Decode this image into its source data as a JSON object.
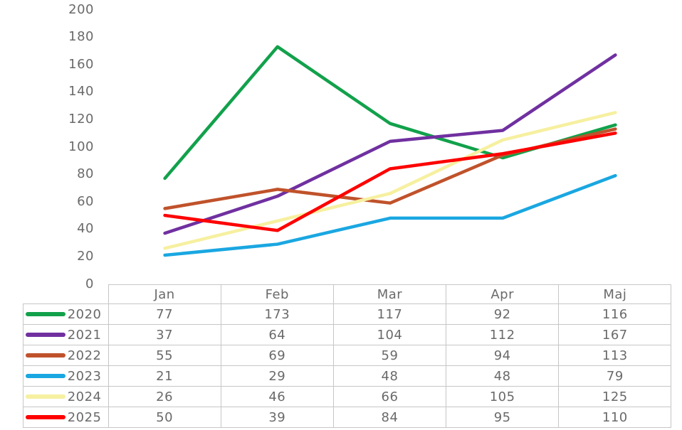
{
  "chart_data": {
    "type": "line",
    "title": "",
    "xlabel": "",
    "ylabel": "",
    "categories": [
      "Jan",
      "Feb",
      "Mar",
      "Apr",
      "Maj"
    ],
    "series": [
      {
        "name": "2020",
        "color": "#12A14B",
        "values": [
          77,
          173,
          117,
          92,
          116
        ]
      },
      {
        "name": "2021",
        "color": "#7030A0",
        "values": [
          37,
          64,
          104,
          112,
          167
        ]
      },
      {
        "name": "2022",
        "color": "#C0522B",
        "values": [
          55,
          69,
          59,
          94,
          113
        ]
      },
      {
        "name": "2023",
        "color": "#1AA7E1",
        "values": [
          21,
          29,
          48,
          48,
          79
        ]
      },
      {
        "name": "2024",
        "color": "#F6F0A0",
        "values": [
          26,
          46,
          66,
          105,
          125
        ]
      },
      {
        "name": "2025",
        "color": "#FE0000",
        "values": [
          50,
          39,
          84,
          95,
          110
        ]
      }
    ],
    "ylim": [
      0,
      200
    ],
    "ytick_step": 20,
    "grid": false,
    "legend_position": "data-table-left-column",
    "data_table_shown": true
  },
  "styles": {
    "text_color": "#6a6a6a",
    "border_color": "#c6c6c6",
    "background_color": "#ffffff",
    "line_width": 4.5
  }
}
